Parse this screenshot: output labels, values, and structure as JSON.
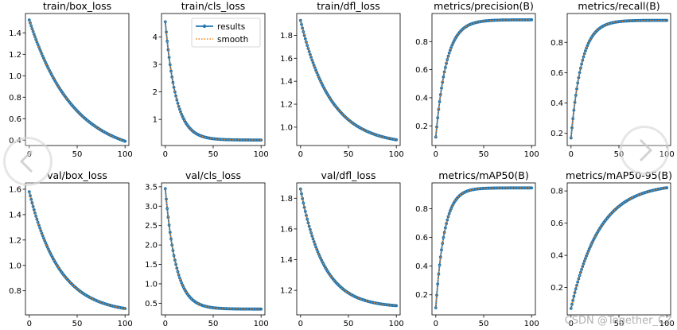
{
  "watermark": "CSDN @Together_CZ",
  "colors": {
    "results": "#1f77b4",
    "smooth": "#ff7f0e",
    "axis": "#000000"
  },
  "legend": {
    "results": "results",
    "smooth": "smooth"
  },
  "chart_data": [
    {
      "type": "line",
      "title": "train/box_loss",
      "xlim": [
        -4,
        104
      ],
      "ylim": [
        0.35,
        1.58
      ],
      "xticks": [
        0,
        50,
        100
      ],
      "yticks": [
        0.4,
        0.6,
        0.8,
        1.0,
        1.2,
        1.4
      ],
      "ytick_labels": [
        "0.4",
        "0.6",
        "0.8",
        "1.0",
        "1.2",
        "1.4"
      ],
      "curve": {
        "start": 1.52,
        "end": 0.39,
        "k": 2.2
      },
      "legend": false
    },
    {
      "type": "line",
      "title": "train/cls_loss",
      "xlim": [
        -4,
        104
      ],
      "ylim": [
        0.05,
        4.85
      ],
      "xticks": [
        0,
        50,
        100
      ],
      "yticks": [
        1,
        2,
        3,
        4
      ],
      "ytick_labels": [
        "1",
        "2",
        "3",
        "4"
      ],
      "curve": {
        "start": 4.55,
        "end": 0.25,
        "k": 9.0
      },
      "legend": true
    },
    {
      "type": "line",
      "title": "train/dfl_loss",
      "xlim": [
        -4,
        104
      ],
      "ylim": [
        0.84,
        1.99
      ],
      "xticks": [
        0,
        50,
        100
      ],
      "yticks": [
        1.0,
        1.2,
        1.4,
        1.6,
        1.8
      ],
      "ytick_labels": [
        "1.0",
        "1.2",
        "1.4",
        "1.6",
        "1.8"
      ],
      "curve": {
        "start": 1.93,
        "end": 0.89,
        "k": 3.2
      },
      "legend": false
    },
    {
      "type": "line",
      "title": "metrics/precision(B)",
      "xlim": [
        -4,
        104
      ],
      "ylim": [
        0.06,
        1.0
      ],
      "xticks": [
        0,
        50,
        100
      ],
      "yticks": [
        0.2,
        0.4,
        0.6,
        0.8
      ],
      "ytick_labels": [
        "0.2",
        "0.4",
        "0.6",
        "0.8"
      ],
      "curve": {
        "start": 0.12,
        "end": 0.955,
        "k": 9.0
      },
      "legend": false
    },
    {
      "type": "line",
      "title": "metrics/recall(B)",
      "xlim": [
        -4,
        104
      ],
      "ylim": [
        0.12,
        0.99
      ],
      "xticks": [
        0,
        50,
        100
      ],
      "yticks": [
        0.2,
        0.4,
        0.6,
        0.8
      ],
      "ytick_labels": [
        "0.2",
        "0.4",
        "0.6",
        "0.8"
      ],
      "curve": {
        "start": 0.17,
        "end": 0.945,
        "k": 9.0
      },
      "legend": false
    },
    {
      "type": "line",
      "title": "val/box_loss",
      "xlim": [
        -4,
        104
      ],
      "ylim": [
        0.61,
        1.65
      ],
      "xticks": [
        0,
        50,
        100
      ],
      "yticks": [
        0.8,
        1.0,
        1.2,
        1.4,
        1.6
      ],
      "ytick_labels": [
        "0.8",
        "1.0",
        "1.2",
        "1.4",
        "1.6"
      ],
      "curve": {
        "start": 1.58,
        "end": 0.66,
        "k": 3.2
      },
      "legend": false
    },
    {
      "type": "line",
      "title": "val/cls_loss",
      "xlim": [
        -4,
        104
      ],
      "ylim": [
        0.2,
        3.6
      ],
      "xticks": [
        0,
        50,
        100
      ],
      "yticks": [
        0.5,
        1.0,
        1.5,
        2.0,
        2.5,
        3.0,
        3.5
      ],
      "ytick_labels": [
        "0.5",
        "1.0",
        "1.5",
        "2.0",
        "2.5",
        "3.0",
        "3.5"
      ],
      "curve": {
        "start": 3.45,
        "end": 0.35,
        "k": 9.0
      },
      "legend": false
    },
    {
      "type": "line",
      "title": "val/dfl_loss",
      "xlim": [
        -4,
        104
      ],
      "ylim": [
        1.04,
        1.9
      ],
      "xticks": [
        0,
        50,
        100
      ],
      "yticks": [
        1.2,
        1.4,
        1.6,
        1.8
      ],
      "ytick_labels": [
        "1.2",
        "1.4",
        "1.6",
        "1.8"
      ],
      "curve": {
        "start": 1.86,
        "end": 1.1,
        "k": 4.2
      },
      "legend": false
    },
    {
      "type": "line",
      "title": "metrics/mAP50(B)",
      "xlim": [
        -4,
        104
      ],
      "ylim": [
        0.06,
        0.98
      ],
      "xticks": [
        0,
        50,
        100
      ],
      "yticks": [
        0.2,
        0.4,
        0.6,
        0.8
      ],
      "ytick_labels": [
        "0.2",
        "0.4",
        "0.6",
        "0.8"
      ],
      "curve": {
        "start": 0.11,
        "end": 0.945,
        "k": 11.0
      },
      "legend": false
    },
    {
      "type": "line",
      "title": "metrics/mAP50-95(B)",
      "xlim": [
        -4,
        104
      ],
      "ylim": [
        0.03,
        0.85
      ],
      "xticks": [
        0,
        50,
        100
      ],
      "yticks": [
        0.2,
        0.4,
        0.6,
        0.8
      ],
      "ytick_labels": [
        "0.2",
        "0.4",
        "0.6",
        "0.8"
      ],
      "curve": {
        "start": 0.07,
        "end": 0.82,
        "k": 3.4
      },
      "legend": false
    }
  ]
}
